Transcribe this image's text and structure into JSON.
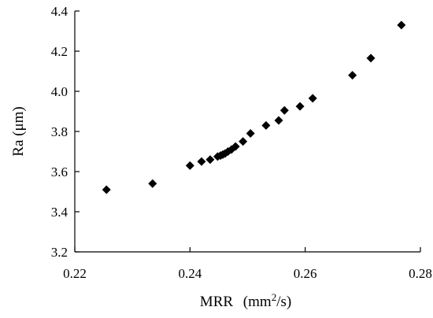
{
  "chart_data": {
    "type": "scatter",
    "marker": "diamond",
    "marker_color": "#000000",
    "xlabel_main": "MRR",
    "xlabel_unit_pre": "(mm",
    "xlabel_unit_sup": "2",
    "xlabel_unit_post": "/s)",
    "ylabel": "Ra  (μm)",
    "xlim": [
      0.22,
      0.28
    ],
    "ylim": [
      3.2,
      4.4
    ],
    "xticks": [
      "0.22",
      "0.24",
      "0.26",
      "0.28"
    ],
    "yticks": [
      "3.2",
      "3.4",
      "3.6",
      "3.8",
      "4.0",
      "4.2",
      "4.4"
    ],
    "grid": false,
    "series": [
      {
        "points": [
          [
            0.2255,
            3.51
          ],
          [
            0.2335,
            3.54
          ],
          [
            0.24,
            3.63
          ],
          [
            0.242,
            3.65
          ],
          [
            0.2435,
            3.66
          ],
          [
            0.2448,
            3.675
          ],
          [
            0.2453,
            3.68
          ],
          [
            0.2457,
            3.685
          ],
          [
            0.2461,
            3.69
          ],
          [
            0.2466,
            3.7
          ],
          [
            0.2472,
            3.71
          ],
          [
            0.2479,
            3.725
          ],
          [
            0.2492,
            3.75
          ],
          [
            0.2505,
            3.79
          ],
          [
            0.2532,
            3.83
          ],
          [
            0.2554,
            3.855
          ],
          [
            0.2564,
            3.905
          ],
          [
            0.2591,
            3.925
          ],
          [
            0.2613,
            3.965
          ],
          [
            0.2682,
            4.08
          ],
          [
            0.2714,
            4.165
          ],
          [
            0.2767,
            4.33
          ]
        ]
      }
    ]
  }
}
